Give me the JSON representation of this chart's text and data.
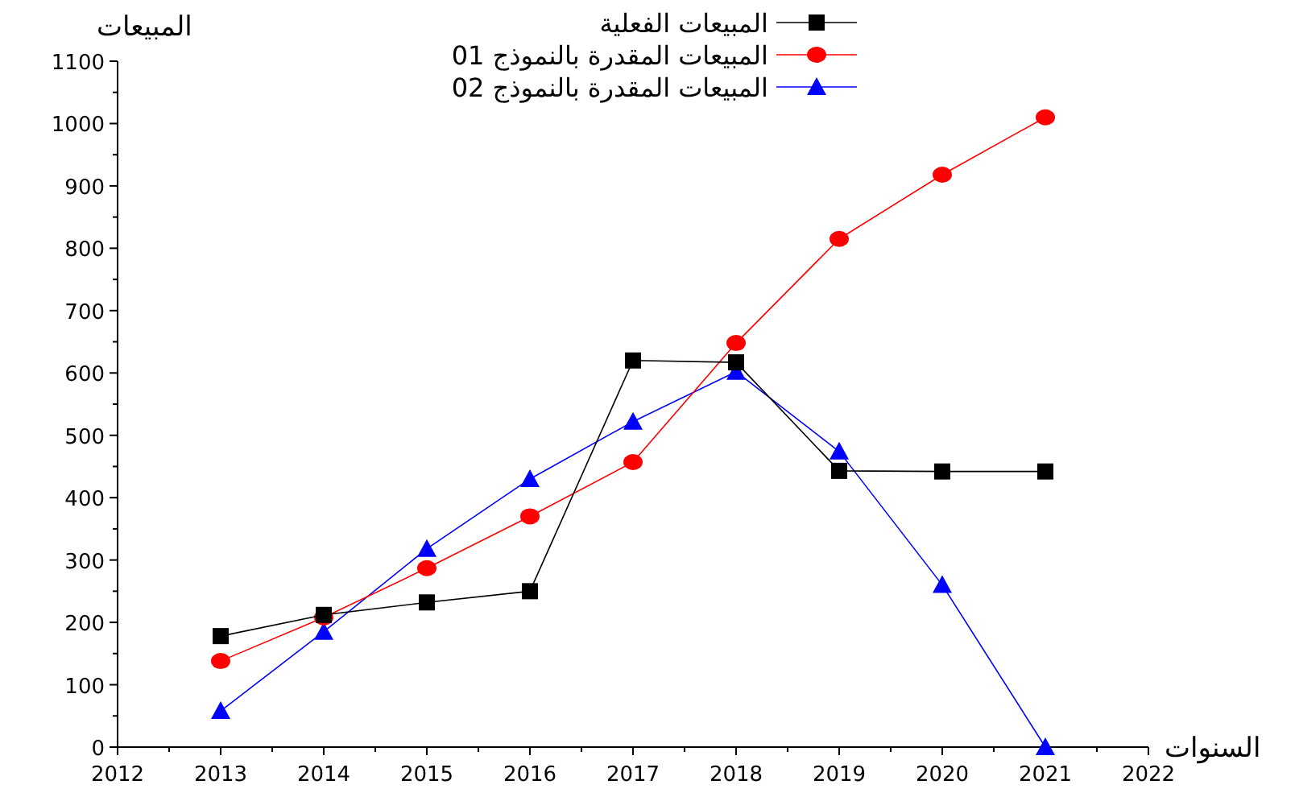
{
  "chart_data": {
    "type": "line",
    "xlabel": "السنوات",
    "ylabel": "المبيعات",
    "x": [
      2013,
      2014,
      2015,
      2016,
      2017,
      2018,
      2019,
      2020,
      2021
    ],
    "series": [
      {
        "name": "المبيعات الفعلية",
        "color": "#000000",
        "marker": "square",
        "values": [
          178,
          212,
          232,
          250,
          620,
          617,
          443,
          442,
          442
        ]
      },
      {
        "name": "المبيعات المقدرة بالنموذج 01",
        "color": "#ff0000",
        "marker": "circle",
        "values": [
          138,
          208,
          287,
          370,
          457,
          648,
          815,
          918,
          1010
        ]
      },
      {
        "name": "المبيعات المقدرة بالنموذج 02",
        "color": "#0000ff",
        "marker": "triangle",
        "values": [
          58,
          185,
          318,
          430,
          522,
          602,
          474,
          260,
          0
        ]
      }
    ],
    "xlim": [
      2012,
      2022
    ],
    "xticks": [
      2012,
      2013,
      2014,
      2015,
      2016,
      2017,
      2018,
      2019,
      2020,
      2021,
      2022
    ],
    "ylim": [
      0,
      1100
    ],
    "yticks": [
      0,
      100,
      200,
      300,
      400,
      500,
      600,
      700,
      800,
      900,
      1000,
      1100
    ],
    "grid": false,
    "legend": "top",
    "line_style": "solid"
  }
}
